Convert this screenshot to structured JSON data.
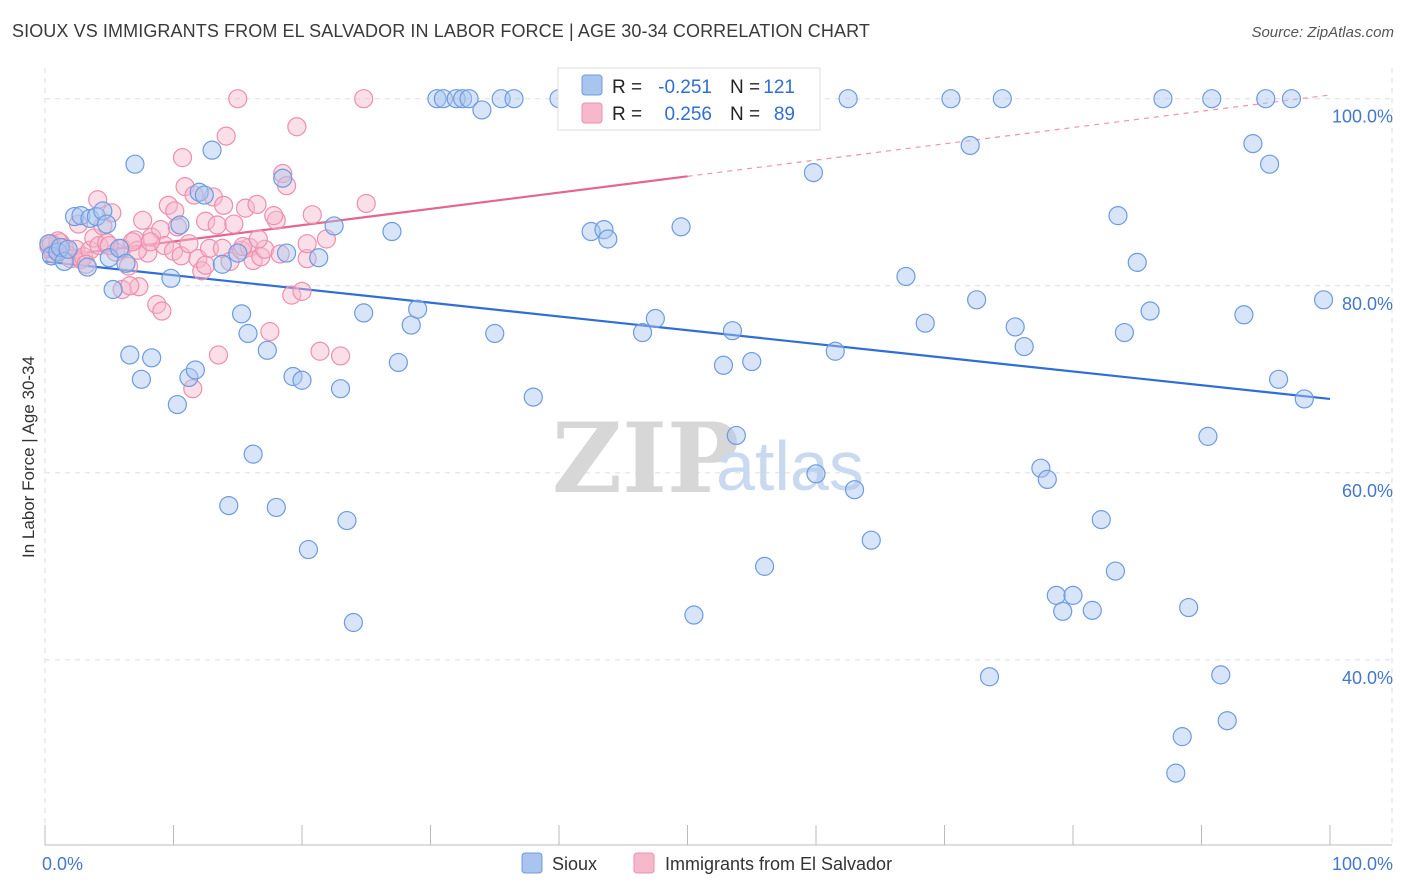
{
  "title": "SIOUX VS IMMIGRANTS FROM EL SALVADOR IN LABOR FORCE | AGE 30-34 CORRELATION CHART",
  "source": "Source: ZipAtlas.com",
  "watermark": {
    "zip": "ZIP",
    "atlas": "atlas"
  },
  "colors": {
    "sioux_fill": "#a9c5ef",
    "sioux_stroke": "#6d9be0",
    "sioux_line": "#2f6ed6",
    "salv_fill": "#f6b9cc",
    "salv_stroke": "#ec8fae",
    "salv_line": "#e46690",
    "grid": "#dddddd",
    "axis_text": "#4477cc"
  },
  "stats": {
    "sioux": {
      "r_label": "R =",
      "r_value": "-0.251",
      "n_label": "N =",
      "n_value": "121"
    },
    "salv": {
      "r_label": "R =",
      "r_value": "0.256",
      "n_label": "N =",
      "n_value": "89"
    }
  },
  "chart_data": {
    "type": "scatter",
    "title": "SIOUX VS IMMIGRANTS FROM EL SALVADOR IN LABOR FORCE | AGE 30-34 CORRELATION CHART",
    "xlabel": "",
    "ylabel": "In Labor Force | Age 30-34",
    "xlim": [
      0,
      100
    ],
    "ylim": [
      20,
      102
    ],
    "x_tick_labels": [
      "0.0%",
      "100.0%"
    ],
    "y_ticks": [
      40,
      60,
      80,
      100
    ],
    "y_tick_labels": [
      "40.0%",
      "60.0%",
      "80.0%",
      "100.0%"
    ],
    "grid": true,
    "legend": [
      "Sioux",
      "Immigrants from El Salvador"
    ],
    "series": [
      {
        "name": "Sioux",
        "trend": {
          "x0": 0,
          "y0": 82.6,
          "x1": 100,
          "y1": 67.9
        },
        "points": [
          [
            0.3,
            84.5
          ],
          [
            0.5,
            83.2
          ],
          [
            1.0,
            83.6
          ],
          [
            1.2,
            84.1
          ],
          [
            1.5,
            82.6
          ],
          [
            1.8,
            83.9
          ],
          [
            2.3,
            87.4
          ],
          [
            2.8,
            87.5
          ],
          [
            3.3,
            82.0
          ],
          [
            3.5,
            87.2
          ],
          [
            4.0,
            87.4
          ],
          [
            4.5,
            88.0
          ],
          [
            4.8,
            86.6
          ],
          [
            5.0,
            83.0
          ],
          [
            5.3,
            79.6
          ],
          [
            5.8,
            84.0
          ],
          [
            6.3,
            82.4
          ],
          [
            6.6,
            72.6
          ],
          [
            7.0,
            93.0
          ],
          [
            7.5,
            70.0
          ],
          [
            8.3,
            72.3
          ],
          [
            9.8,
            80.8
          ],
          [
            10.3,
            67.3
          ],
          [
            10.5,
            86.5
          ],
          [
            11.2,
            70.2
          ],
          [
            11.7,
            71.0
          ],
          [
            12.0,
            90.0
          ],
          [
            12.4,
            89.7
          ],
          [
            13.0,
            94.5
          ],
          [
            13.8,
            82.3
          ],
          [
            14.3,
            56.5
          ],
          [
            15.0,
            83.5
          ],
          [
            15.3,
            77.0
          ],
          [
            15.8,
            74.9
          ],
          [
            16.2,
            62.0
          ],
          [
            17.3,
            73.1
          ],
          [
            18.0,
            56.3
          ],
          [
            18.5,
            91.5
          ],
          [
            18.8,
            83.5
          ],
          [
            19.3,
            70.3
          ],
          [
            20.0,
            69.9
          ],
          [
            20.5,
            51.8
          ],
          [
            21.3,
            83.0
          ],
          [
            22.5,
            86.4
          ],
          [
            23.0,
            69.0
          ],
          [
            23.5,
            54.9
          ],
          [
            24.0,
            44.0
          ],
          [
            24.8,
            77.1
          ],
          [
            27.0,
            85.8
          ],
          [
            27.5,
            71.8
          ],
          [
            28.5,
            75.8
          ],
          [
            29.0,
            77.5
          ],
          [
            30.5,
            100.0
          ],
          [
            31.0,
            100.0
          ],
          [
            32.0,
            100.0
          ],
          [
            32.5,
            100.0
          ],
          [
            33.0,
            100.0
          ],
          [
            34.0,
            98.8
          ],
          [
            35.0,
            74.9
          ],
          [
            35.5,
            100.0
          ],
          [
            36.5,
            100.0
          ],
          [
            38.0,
            68.1
          ],
          [
            40.0,
            100.0
          ],
          [
            42.5,
            85.8
          ],
          [
            43.5,
            86.0
          ],
          [
            43.8,
            85.0
          ],
          [
            45.0,
            100.0
          ],
          [
            46.5,
            75.0
          ],
          [
            47.5,
            76.5
          ],
          [
            47.8,
            100.0
          ],
          [
            49.5,
            86.3
          ],
          [
            50.5,
            44.8
          ],
          [
            52.0,
            100.0
          ],
          [
            52.8,
            71.5
          ],
          [
            53.5,
            75.2
          ],
          [
            53.8,
            64.0
          ],
          [
            54.5,
            100.0
          ],
          [
            55.0,
            71.9
          ],
          [
            56.0,
            50.0
          ],
          [
            57.0,
            100.0
          ],
          [
            59.8,
            92.1
          ],
          [
            60.0,
            59.9
          ],
          [
            61.5,
            73.0
          ],
          [
            62.5,
            100.0
          ],
          [
            63.0,
            58.2
          ],
          [
            64.3,
            52.8
          ],
          [
            67.0,
            81.0
          ],
          [
            68.5,
            76.0
          ],
          [
            70.5,
            100.0
          ],
          [
            72.0,
            95.0
          ],
          [
            72.5,
            78.5
          ],
          [
            73.5,
            38.2
          ],
          [
            74.5,
            100.0
          ],
          [
            75.5,
            75.6
          ],
          [
            76.2,
            73.5
          ],
          [
            77.5,
            60.5
          ],
          [
            78.0,
            59.3
          ],
          [
            78.7,
            46.9
          ],
          [
            79.2,
            45.2
          ],
          [
            80.0,
            46.9
          ],
          [
            81.5,
            45.3
          ],
          [
            82.2,
            55.0
          ],
          [
            83.3,
            49.5
          ],
          [
            83.5,
            87.5
          ],
          [
            84.0,
            75.0
          ],
          [
            85.0,
            82.5
          ],
          [
            86.0,
            77.3
          ],
          [
            87.0,
            100.0
          ],
          [
            88.0,
            27.9
          ],
          [
            88.5,
            31.8
          ],
          [
            89.0,
            45.6
          ],
          [
            90.5,
            63.9
          ],
          [
            90.8,
            100.0
          ],
          [
            91.5,
            38.4
          ],
          [
            92.0,
            33.5
          ],
          [
            93.3,
            76.9
          ],
          [
            94.0,
            95.2
          ],
          [
            95.0,
            100.0
          ],
          [
            95.3,
            93.0
          ],
          [
            96.0,
            70.0
          ],
          [
            97.0,
            100.0
          ],
          [
            98.0,
            67.9
          ],
          [
            99.5,
            78.5
          ]
        ]
      },
      {
        "name": "Immigrants from El Salvador",
        "trend": {
          "x0": 0,
          "y0": 83.0,
          "x1": 50,
          "y1": 91.7
        },
        "trend_dashed": {
          "x0": 50,
          "y0": 91.7,
          "x1": 100,
          "y1": 100.4
        },
        "points": [
          [
            0.3,
            84.2
          ],
          [
            0.6,
            83.5
          ],
          [
            0.9,
            83.8
          ],
          [
            1.2,
            84.6
          ],
          [
            1.5,
            84.1
          ],
          [
            1.8,
            83.3
          ],
          [
            2.0,
            82.9
          ],
          [
            2.4,
            83.9
          ],
          [
            2.8,
            82.8
          ],
          [
            3.0,
            83.1
          ],
          [
            3.5,
            83.8
          ],
          [
            3.8,
            85.1
          ],
          [
            4.2,
            84.3
          ],
          [
            4.5,
            86.4
          ],
          [
            4.8,
            84.6
          ],
          [
            5.2,
            87.8
          ],
          [
            5.5,
            83.6
          ],
          [
            6.0,
            84.0
          ],
          [
            6.5,
            82.1
          ],
          [
            7.0,
            84.9
          ],
          [
            7.3,
            79.9
          ],
          [
            7.6,
            87.0
          ],
          [
            8.0,
            83.5
          ],
          [
            8.3,
            85.2
          ],
          [
            8.7,
            78.0
          ],
          [
            9.0,
            86.0
          ],
          [
            9.3,
            84.3
          ],
          [
            9.6,
            88.6
          ],
          [
            10.0,
            83.7
          ],
          [
            10.3,
            86.3
          ],
          [
            10.6,
            83.2
          ],
          [
            10.9,
            90.6
          ],
          [
            11.2,
            84.5
          ],
          [
            11.6,
            89.7
          ],
          [
            11.9,
            82.9
          ],
          [
            12.2,
            81.6
          ],
          [
            12.5,
            86.9
          ],
          [
            12.8,
            84.0
          ],
          [
            13.1,
            89.5
          ],
          [
            13.4,
            86.5
          ],
          [
            13.8,
            84.0
          ],
          [
            14.1,
            96.0
          ],
          [
            14.4,
            82.6
          ],
          [
            14.7,
            86.6
          ],
          [
            15.0,
            100.0
          ],
          [
            15.3,
            83.8
          ],
          [
            15.6,
            88.3
          ],
          [
            15.9,
            84.1
          ],
          [
            16.2,
            82.7
          ],
          [
            16.5,
            88.7
          ],
          [
            16.8,
            83.1
          ],
          [
            17.1,
            83.9
          ],
          [
            17.5,
            75.1
          ],
          [
            18.0,
            87.0
          ],
          [
            18.5,
            92.0
          ],
          [
            18.8,
            90.7
          ],
          [
            19.2,
            79.0
          ],
          [
            19.6,
            97.0
          ],
          [
            20.0,
            79.4
          ],
          [
            20.4,
            82.9
          ],
          [
            20.8,
            87.6
          ],
          [
            21.4,
            73.0
          ],
          [
            21.9,
            85.0
          ],
          [
            23.0,
            72.5
          ],
          [
            24.8,
            100.0
          ],
          [
            25.0,
            88.8
          ],
          [
            13.5,
            72.6
          ],
          [
            11.5,
            69.0
          ],
          [
            6.0,
            79.6
          ],
          [
            6.6,
            80.0
          ],
          [
            7.2,
            83.8
          ],
          [
            8.2,
            84.7
          ],
          [
            9.1,
            77.3
          ],
          [
            10.1,
            88.0
          ],
          [
            10.7,
            93.7
          ],
          [
            12.5,
            82.2
          ],
          [
            3.2,
            82.3
          ],
          [
            2.6,
            86.6
          ],
          [
            4.1,
            89.2
          ],
          [
            5.0,
            84.3
          ],
          [
            6.8,
            84.7
          ],
          [
            13.9,
            88.6
          ],
          [
            15.4,
            84.2
          ],
          [
            16.6,
            85.0
          ],
          [
            17.8,
            87.5
          ],
          [
            18.3,
            83.4
          ],
          [
            20.4,
            84.5
          ],
          [
            1.0,
            84.8
          ],
          [
            0.5,
            84.5
          ]
        ]
      }
    ]
  },
  "legend": {
    "sioux": "Sioux",
    "salv": "Immigrants from El Salvador"
  }
}
